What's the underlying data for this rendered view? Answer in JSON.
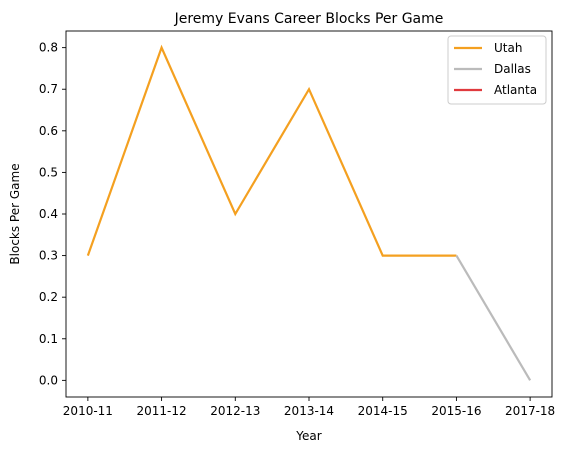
{
  "chart_data": {
    "type": "line",
    "title": "Jeremy Evans Career Blocks Per Game",
    "xlabel": "Year",
    "ylabel": "Blocks Per Game",
    "categories": [
      "2010-11",
      "2011-12",
      "2012-13",
      "2013-14",
      "2014-15",
      "2015-16",
      "2017-18"
    ],
    "ylim": [
      -0.04,
      0.84
    ],
    "yticks": [
      0.0,
      0.1,
      0.2,
      0.3,
      0.4,
      0.5,
      0.6,
      0.7,
      0.8
    ],
    "ytick_labels": [
      "0.0",
      "0.1",
      "0.2",
      "0.3",
      "0.4",
      "0.5",
      "0.6",
      "0.7",
      "0.8"
    ],
    "grid": false,
    "legend_position": "top-right",
    "series": [
      {
        "name": "Utah",
        "color": "#F4A020",
        "x": [
          "2010-11",
          "2011-12",
          "2012-13",
          "2013-14",
          "2014-15",
          "2015-16"
        ],
        "values": [
          0.3,
          0.8,
          0.4,
          0.7,
          0.3,
          0.3
        ]
      },
      {
        "name": "Dallas",
        "color": "#BBBBBB",
        "x": [
          "2015-16",
          "2017-18"
        ],
        "values": [
          0.3,
          0.0
        ]
      },
      {
        "name": "Atlanta",
        "color": "#E03A3E",
        "x": [],
        "values": []
      }
    ]
  }
}
